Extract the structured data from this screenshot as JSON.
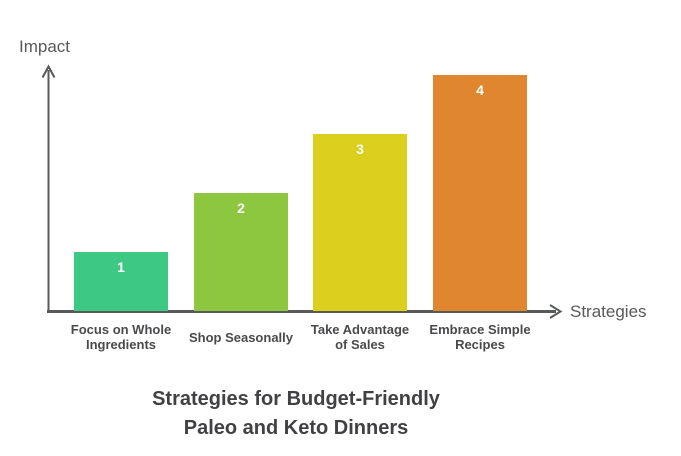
{
  "chart_data": {
    "type": "bar",
    "title": "Strategies for Budget-Friendly\nPaleo and Keto Dinners",
    "xlabel": "Strategies",
    "ylabel": "Impact",
    "categories": [
      "Focus on Whole\nIngredients",
      "Shop Seasonally",
      "Take Advantage\nof Sales",
      "Embrace Simple\nRecipes"
    ],
    "values": [
      1,
      2,
      3,
      4
    ],
    "ylim": [
      0,
      4
    ],
    "grid": false,
    "legend": false,
    "bar_colors": [
      "#3DC884",
      "#8DC63F",
      "#DCCF1D",
      "#E0862F"
    ],
    "value_label_color": "#FFFFFF",
    "axis_color": "#58595B",
    "tick_label_color": "#4A4A4C",
    "title_color": "#414042"
  }
}
